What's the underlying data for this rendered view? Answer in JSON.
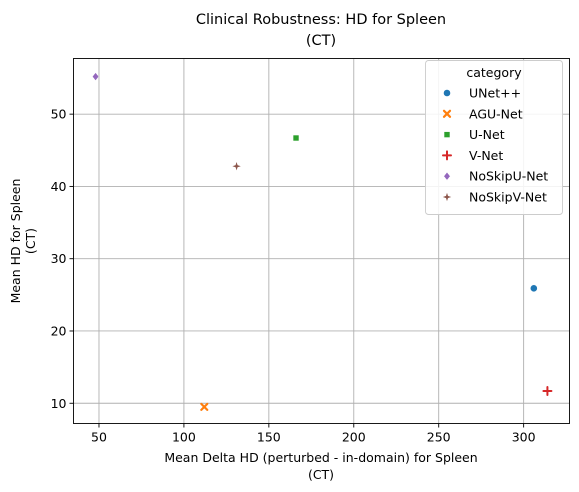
{
  "chart_data": {
    "type": "scatter",
    "title": [
      "Clinical Robustness: HD for Spleen",
      "(CT)"
    ],
    "xlabel": [
      "Mean Delta HD (perturbed - in-domain) for Spleen",
      "(CT)"
    ],
    "ylabel": [
      "Mean HD for Spleen",
      "(CT)"
    ],
    "xlim": [
      35,
      327
    ],
    "ylim": [
      7.2,
      57.7
    ],
    "xticks": [
      50,
      100,
      150,
      200,
      250,
      300
    ],
    "yticks": [
      10,
      20,
      30,
      40,
      50
    ],
    "grid": true,
    "legend": {
      "title": "category",
      "placement": "top-right"
    },
    "series": [
      {
        "name": "UNet++",
        "marker": "circle",
        "color": "#1f77b4",
        "x": [
          306
        ],
        "y": [
          25.9
        ]
      },
      {
        "name": "AGU-Net",
        "marker": "x",
        "color": "#ff7f0e",
        "x": [
          112
        ],
        "y": [
          9.5
        ]
      },
      {
        "name": "U-Net",
        "marker": "square",
        "color": "#2ca02c",
        "x": [
          166
        ],
        "y": [
          46.7
        ]
      },
      {
        "name": "V-Net",
        "marker": "plus",
        "color": "#d62728",
        "x": [
          314
        ],
        "y": [
          11.7
        ]
      },
      {
        "name": "NoSkipU-Net",
        "marker": "diamond",
        "color": "#9467bd",
        "x": [
          48
        ],
        "y": [
          55.2
        ]
      },
      {
        "name": "NoSkipV-Net",
        "marker": "star",
        "color": "#8c564b",
        "x": [
          131
        ],
        "y": [
          42.8
        ]
      }
    ]
  }
}
